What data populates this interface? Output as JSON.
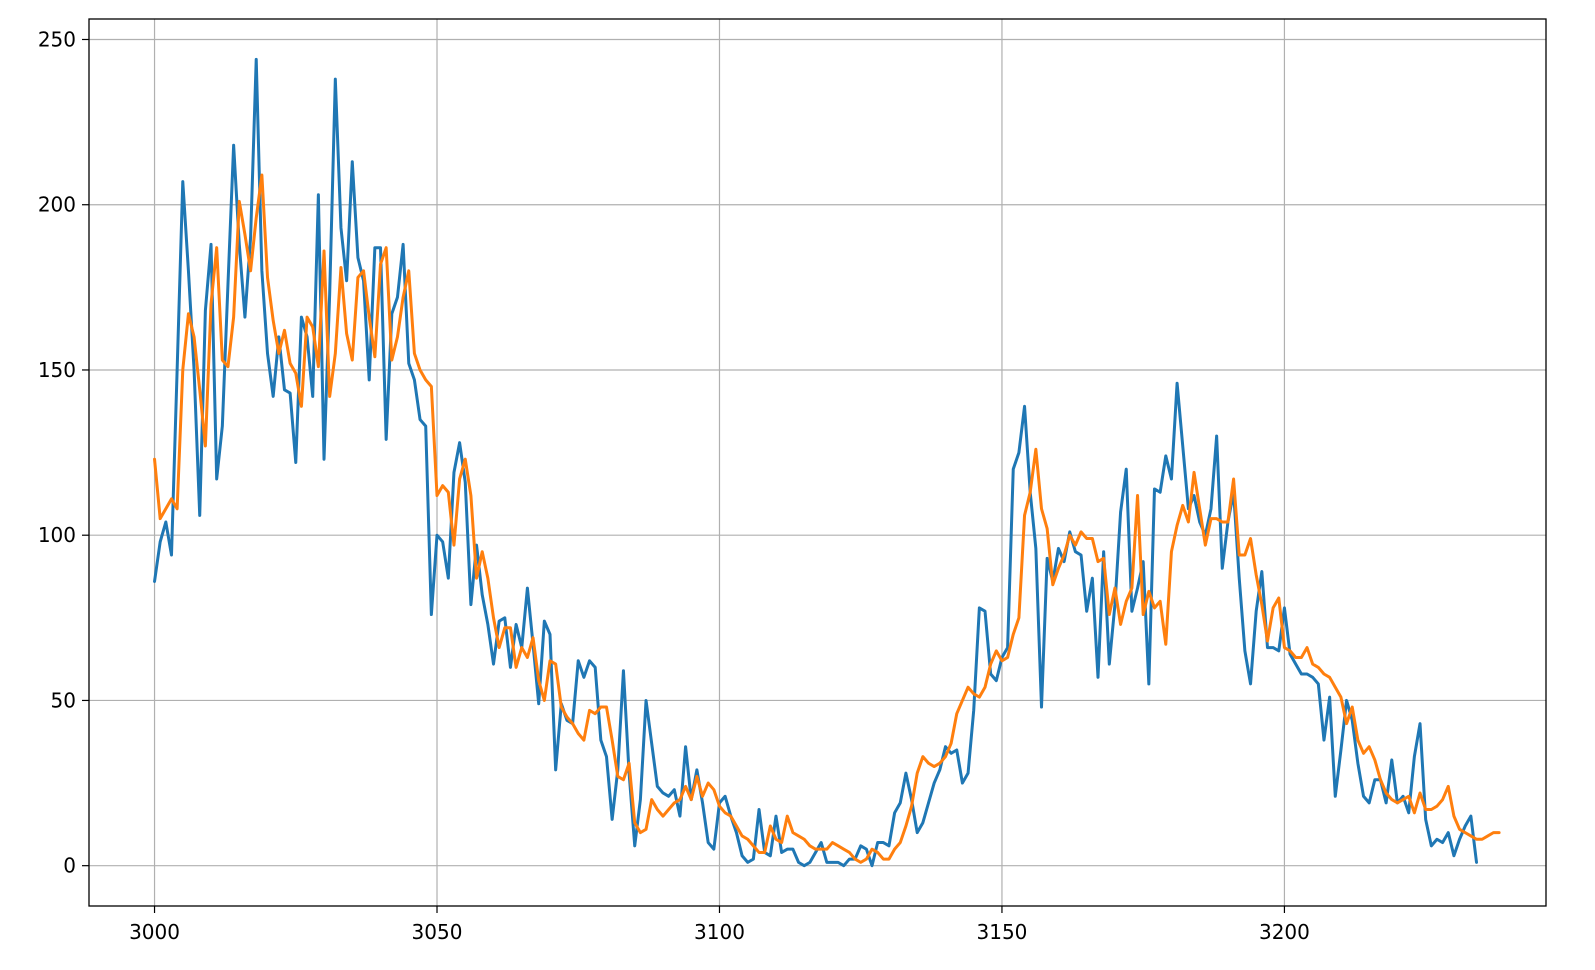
{
  "chart_data": {
    "type": "line",
    "title": "",
    "xlabel": "",
    "ylabel": "",
    "xlim": [
      2988.4,
      3246.3
    ],
    "ylim": [
      -12.2,
      256.2
    ],
    "xticks": [
      3000,
      3050,
      3100,
      3150,
      3200
    ],
    "yticks": [
      0,
      50,
      100,
      150,
      200,
      250
    ],
    "grid": true,
    "legend": "none",
    "x_start": 3000,
    "x_step": 1,
    "series": [
      {
        "color": "#1f77b4",
        "values": [
          86,
          98,
          104,
          94,
          150,
          207,
          180,
          150,
          106,
          168,
          188,
          117,
          133,
          176,
          218,
          188,
          166,
          190,
          244,
          180,
          155,
          142,
          160,
          144,
          143,
          122,
          166,
          160,
          142,
          203,
          123,
          173,
          238,
          193,
          177,
          213,
          184,
          177,
          147,
          187,
          187,
          129,
          167,
          172,
          188,
          152,
          147,
          135,
          133,
          76,
          100,
          98,
          87,
          119,
          128,
          116,
          79,
          97,
          82,
          73,
          61,
          74,
          75,
          60,
          73,
          66,
          84,
          67,
          49,
          74,
          70,
          29,
          49,
          44,
          43,
          62,
          57,
          62,
          60,
          38,
          33,
          14,
          29,
          59,
          28,
          6,
          20,
          50,
          37,
          24,
          22,
          21,
          23,
          15,
          36,
          20,
          29,
          19,
          7,
          5,
          19,
          21,
          15,
          10,
          3,
          1,
          2,
          17,
          4,
          3,
          15,
          4,
          5,
          5,
          1,
          0,
          1,
          4,
          7,
          1,
          1,
          1,
          0,
          2,
          2,
          6,
          5,
          0,
          7,
          7,
          6,
          16,
          19,
          28,
          20,
          10,
          13,
          19,
          25,
          29,
          36,
          34,
          35,
          25,
          28,
          47,
          78,
          77,
          58,
          56,
          63,
          66,
          120,
          125,
          139,
          113,
          96,
          48,
          93,
          86,
          96,
          92,
          101,
          95,
          94,
          77,
          87,
          57,
          95,
          61,
          79,
          107,
          120,
          77,
          84,
          92,
          55,
          114,
          113,
          124,
          117,
          146,
          127,
          108,
          112,
          104,
          100,
          108,
          130,
          90,
          104,
          113,
          87,
          65,
          55,
          77,
          89,
          66,
          66,
          65,
          78,
          64,
          61,
          58,
          58,
          57,
          55,
          38,
          51,
          21,
          35,
          50,
          44,
          31,
          21,
          19,
          26,
          26,
          19,
          32,
          19,
          21,
          16,
          33,
          43,
          14,
          6,
          8,
          7,
          10,
          3,
          8,
          12,
          15,
          1
        ]
      },
      {
        "color": "#ff7f0e",
        "values": [
          123,
          105,
          108,
          111,
          108,
          150,
          167,
          160,
          144,
          127,
          170,
          187,
          153,
          151,
          166,
          201,
          191,
          180,
          196,
          209,
          178,
          165,
          155,
          162,
          152,
          149,
          139,
          166,
          163,
          151,
          186,
          142,
          155,
          181,
          161,
          153,
          178,
          180,
          166,
          154,
          182,
          187,
          153,
          160,
          172,
          180,
          155,
          150,
          147,
          145,
          112,
          115,
          113,
          97,
          117,
          123,
          112,
          87,
          95,
          87,
          75,
          66,
          72,
          72,
          60,
          66,
          63,
          69,
          56,
          50,
          62,
          61,
          48,
          45,
          43,
          40,
          38,
          47,
          46,
          48,
          48,
          38,
          27,
          26,
          31,
          13,
          10,
          11,
          20,
          17,
          15,
          17,
          19,
          20,
          24,
          20,
          27,
          21,
          25,
          23,
          18,
          16,
          15,
          12,
          9,
          8,
          6,
          4,
          4,
          12,
          8,
          7,
          15,
          10,
          9,
          8,
          6,
          5,
          5,
          5,
          7,
          6,
          5,
          4,
          2,
          1,
          2,
          5,
          4,
          2,
          2,
          5,
          7,
          12,
          18,
          28,
          33,
          31,
          30,
          31,
          33,
          37,
          46,
          50,
          54,
          52,
          51,
          54,
          61,
          65,
          62,
          63,
          70,
          75,
          106,
          113,
          126,
          108,
          102,
          85,
          90,
          94,
          100,
          97,
          101,
          99,
          99,
          92,
          93,
          76,
          84,
          73,
          80,
          84,
          112,
          76,
          83,
          78,
          80,
          67,
          95,
          103,
          109,
          104,
          119,
          108,
          97,
          105,
          105,
          104,
          104,
          117,
          94,
          94,
          99,
          88,
          79,
          68,
          78,
          81,
          66,
          65,
          63,
          63,
          66,
          61,
          60,
          58,
          57,
          54,
          51,
          43,
          48,
          38,
          34,
          36,
          32,
          26,
          22,
          20,
          19,
          20,
          21,
          16,
          22,
          17,
          17,
          18,
          20,
          24,
          15,
          11,
          10,
          9,
          8,
          8,
          9,
          10,
          10
        ]
      }
    ]
  }
}
